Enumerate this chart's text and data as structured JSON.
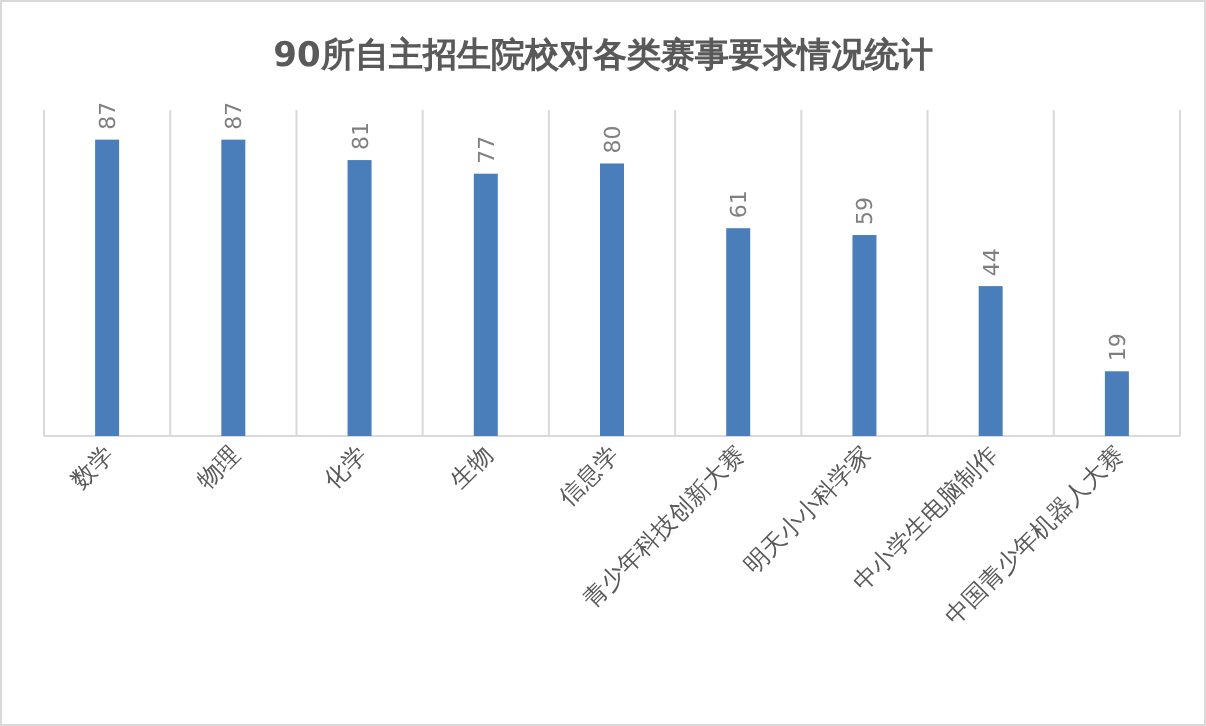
{
  "chart_data": {
    "type": "bar",
    "title": "90所自主招生院校对各类赛事要求情况统计",
    "categories": [
      "数学",
      "物理",
      "化学",
      "生物",
      "信息学",
      "青少年科技创新大赛",
      "明天小小科学家",
      "中小学生电脑制作",
      "中国青少年机器人大赛"
    ],
    "values": [
      87,
      87,
      81,
      77,
      80,
      61,
      59,
      44,
      19
    ],
    "color": "#4a7ebb",
    "data_labels": true,
    "grid": "x"
  }
}
